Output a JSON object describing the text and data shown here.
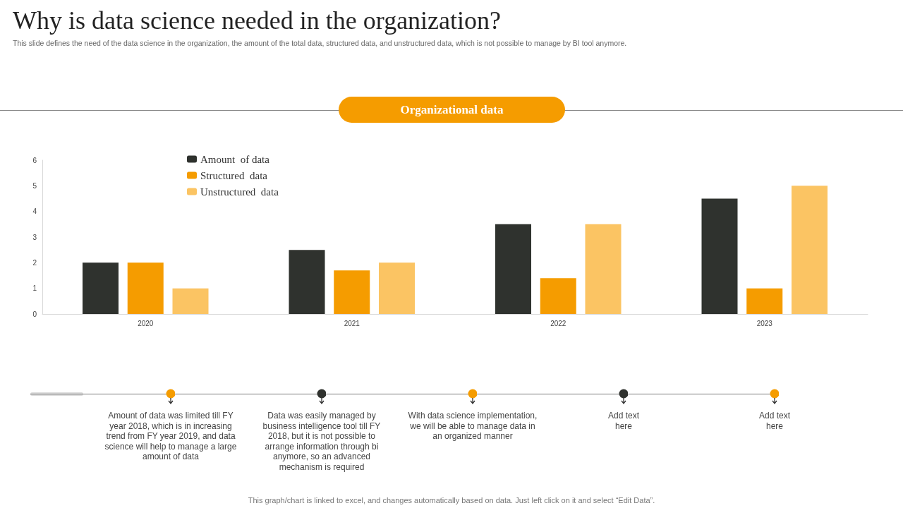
{
  "chart_data": {
    "type": "bar",
    "title": "Why is data science needed in the organization?",
    "subtitle": "This slide defines the need of the data science in the organization, the amount of the total data, structured data, and unstructured data, which is not possible to manage by BI tool anymore.",
    "categories": [
      "2020",
      "2021",
      "2022",
      "2023"
    ],
    "series": [
      {
        "name": "Amount  of data",
        "color": "#2f322e",
        "values": [
          2,
          2.5,
          3.5,
          4.5
        ]
      },
      {
        "name": "Structured  data",
        "color": "#f59c00",
        "values": [
          2,
          1.7,
          1.4,
          1
        ]
      },
      {
        "name": "Unstructured  data",
        "color": "#fbc463",
        "values": [
          1,
          2,
          3.5,
          5
        ]
      }
    ],
    "ylim": [
      0,
      6
    ],
    "yticks": [
      0,
      1,
      2,
      3,
      4,
      5,
      6
    ],
    "grid": false,
    "legend": "top left",
    "annotations": [
      "Organizational data",
      "Amount of data was limited till FY year 2018, which is in increasing trend from FY  year 2019,  and data science will help to manage a large amount of data",
      "Data was easily managed by business intelligence tool till FY 2018,  but it is not possible to arrange information through bi anymore, so an advanced mechanism is required",
      "With data science implementation, we will be able to manage data in an organized manner",
      "Add text here",
      "Add text here",
      "This graph/chart is linked to excel,  and changes automatically based on data. Just left click on it and select “Edit Data”."
    ]
  }
}
